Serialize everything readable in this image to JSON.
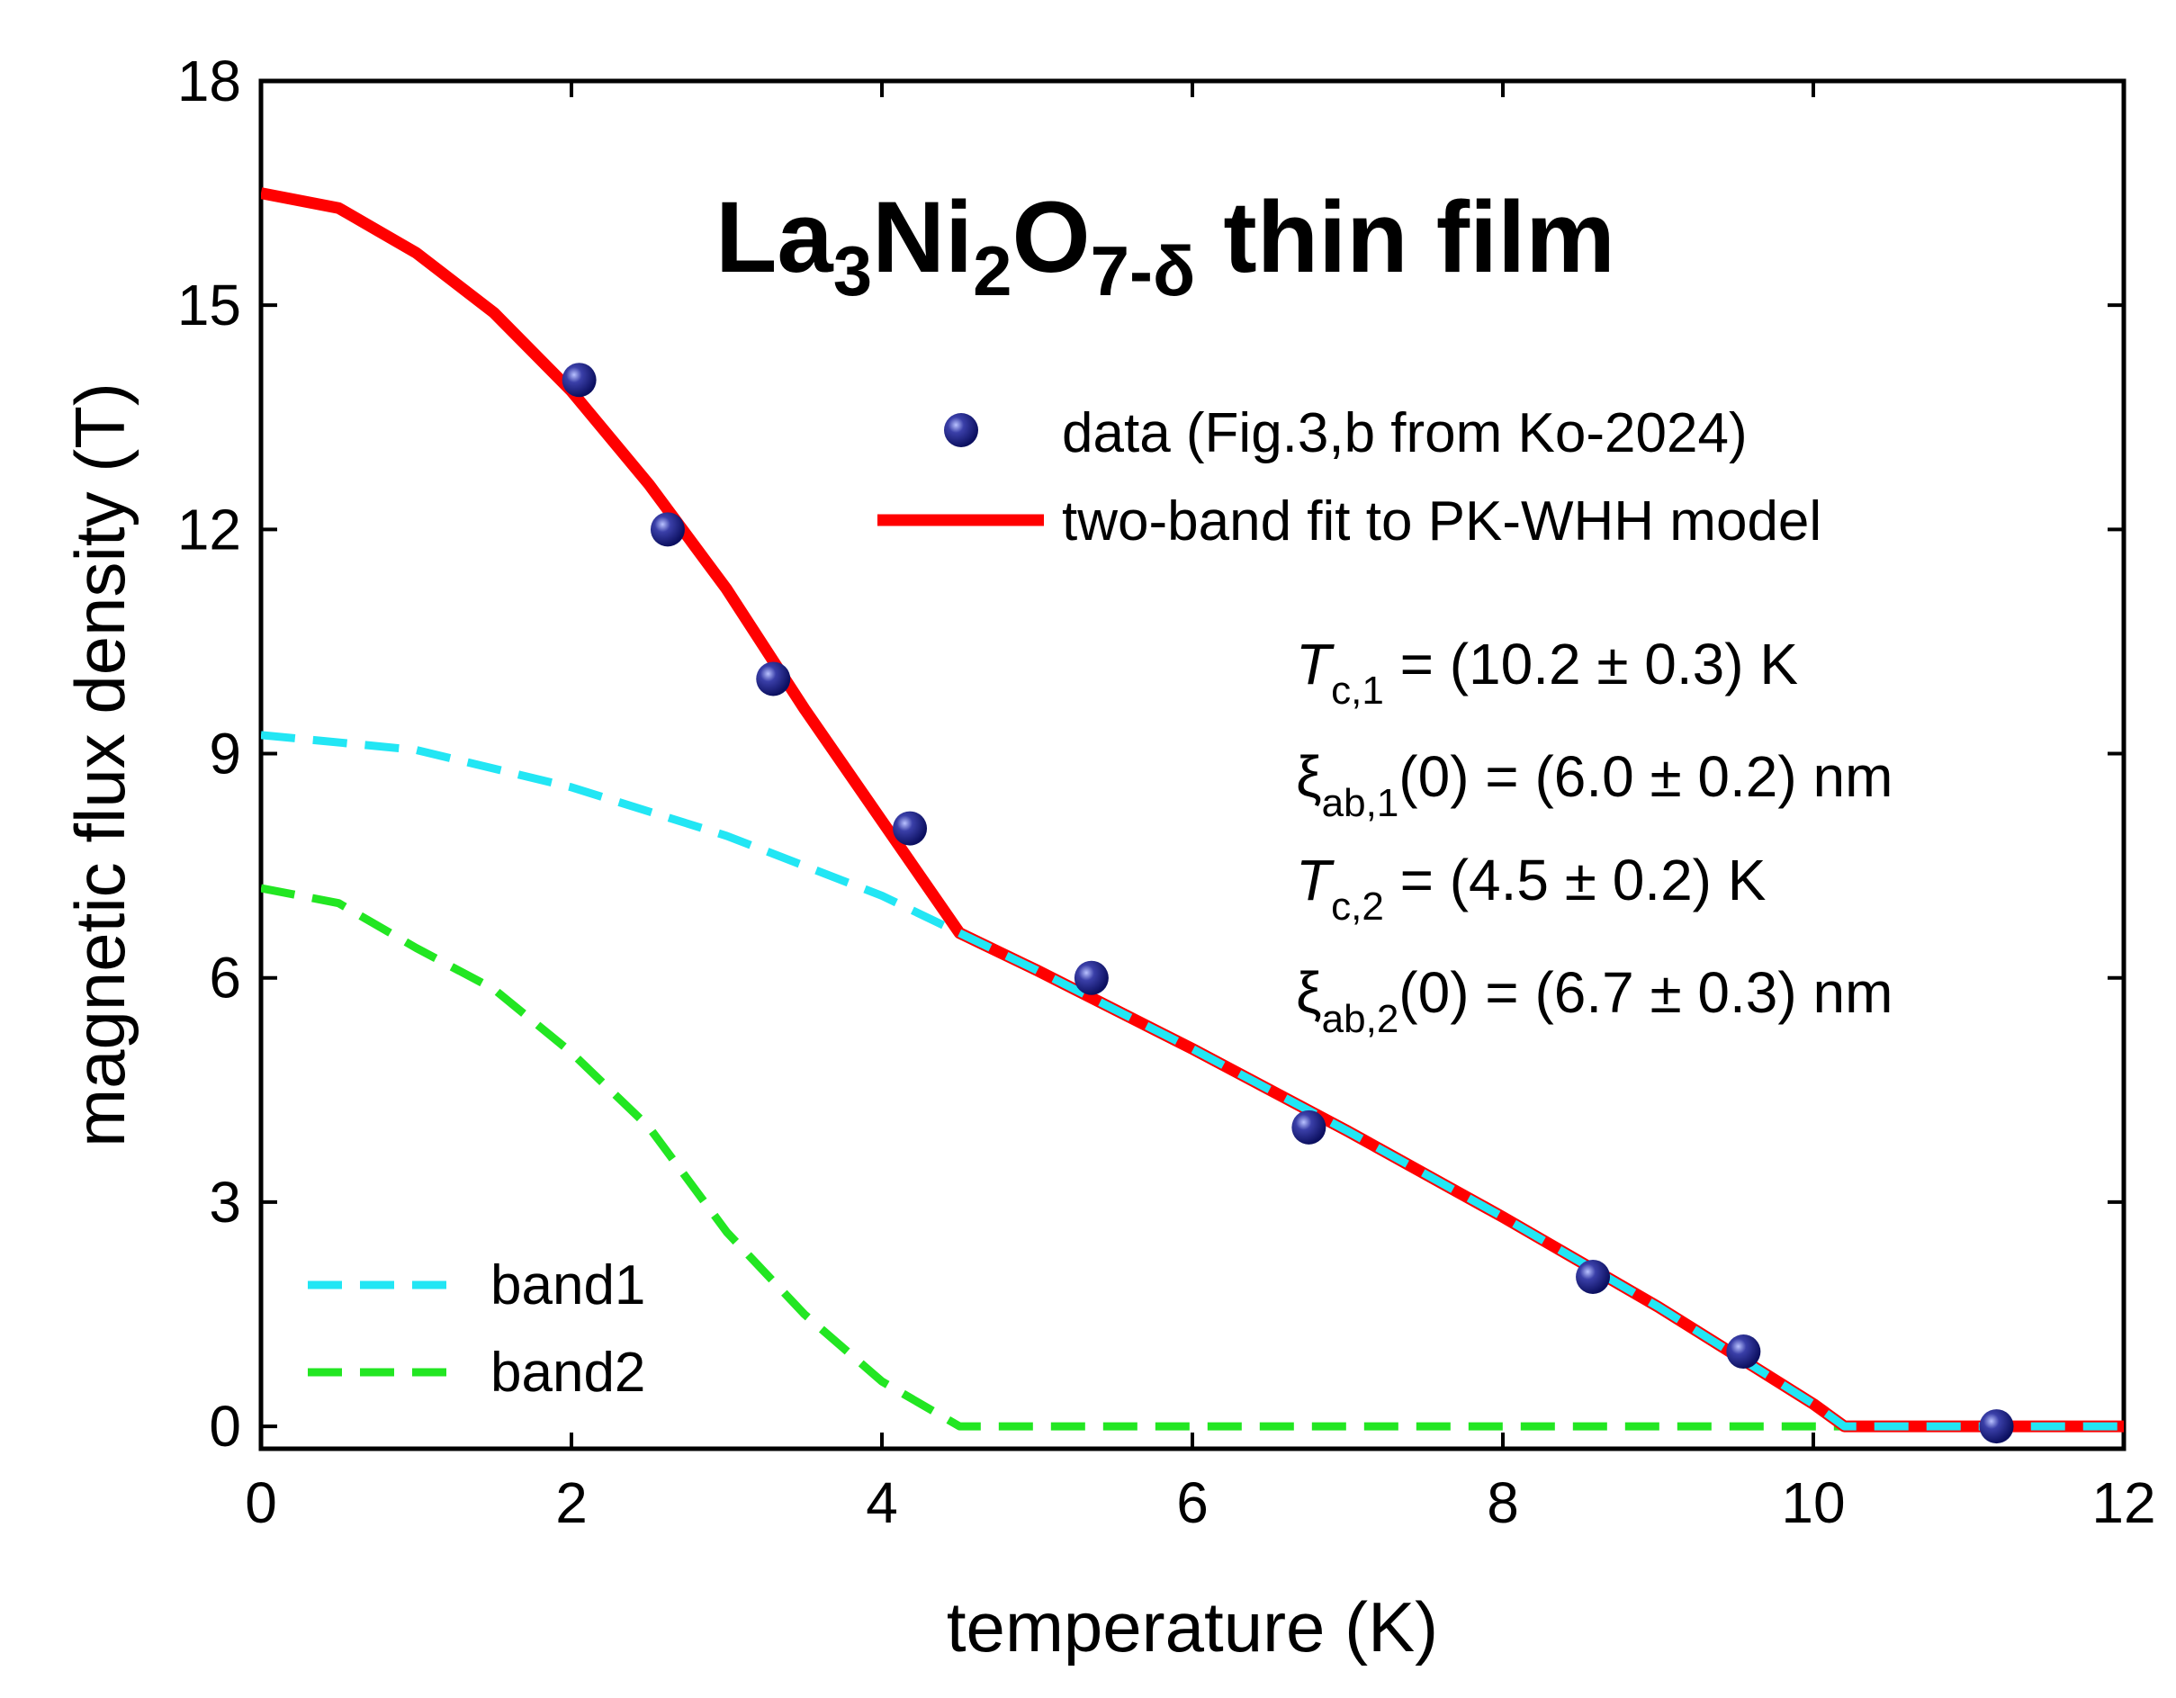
{
  "chart_data": {
    "type": "scatter",
    "title": {
      "prefix": "La",
      "sub1": "3",
      "mid1": "Ni",
      "sub2": "2",
      "mid2": "O",
      "sub3": "7-δ",
      "suffix": " thin film"
    },
    "xlabel": "temperature (K)",
    "ylabel": "magnetic flux density (T)",
    "xlim": [
      0,
      12
    ],
    "ylim": [
      -0.3,
      18
    ],
    "xticks": [
      0,
      2,
      4,
      6,
      8,
      10,
      12
    ],
    "yticks": [
      0,
      3,
      6,
      9,
      12,
      15,
      18
    ],
    "grid": false,
    "series": [
      {
        "name": "data (Fig.3,b from Ko-2024)",
        "kind": "scatter",
        "color": "#1a1f7a",
        "x": [
          2.05,
          2.62,
          3.3,
          4.18,
          5.35,
          6.75,
          8.58,
          9.55,
          11.18
        ],
        "y": [
          14.0,
          12.0,
          10.0,
          8.0,
          6.0,
          4.0,
          2.0,
          1.0,
          0.0
        ]
      },
      {
        "name": "two-band fit to PK-WHH model",
        "kind": "line",
        "color": "#ff0000",
        "x": [
          0,
          0.5,
          1.0,
          1.5,
          2.0,
          2.5,
          3.0,
          3.5,
          4.0,
          4.5,
          5.0,
          6.0,
          7.0,
          8.0,
          9.0,
          10.0,
          10.2,
          12.0
        ],
        "y": [
          16.5,
          16.3,
          15.7,
          14.9,
          13.85,
          12.6,
          11.2,
          9.6,
          8.1,
          6.6,
          6.1,
          5.05,
          3.95,
          2.8,
          1.6,
          0.3,
          0.0,
          0.0
        ]
      },
      {
        "name": "band1",
        "kind": "dashed",
        "color": "#22e6f4",
        "x": [
          0,
          1.0,
          2.0,
          3.0,
          4.0,
          4.5,
          5.0,
          6.0,
          7.0,
          8.0,
          9.0,
          10.0,
          10.2,
          12.0
        ],
        "y": [
          9.25,
          9.05,
          8.55,
          7.9,
          7.1,
          6.6,
          6.1,
          5.05,
          3.95,
          2.8,
          1.6,
          0.3,
          0.0,
          0.0
        ]
      },
      {
        "name": "band2",
        "kind": "dashed",
        "color": "#22e622",
        "x": [
          0,
          0.5,
          1.0,
          1.5,
          2.0,
          2.5,
          3.0,
          3.5,
          4.0,
          4.5,
          12.0
        ],
        "y": [
          7.2,
          7.0,
          6.4,
          5.85,
          5.0,
          4.0,
          2.6,
          1.5,
          0.6,
          0.0,
          0.0
        ]
      }
    ],
    "legend": {
      "data_label": "data (Fig.3,b from Ko-2024)",
      "fit_label": "two-band fit to PK-WHH model",
      "band1_label": "band1",
      "band2_label": "band2"
    },
    "annotations": {
      "tc1": {
        "sym": "T",
        "sub": "c,1",
        "rest": " = (10.2 ± 0.3) K"
      },
      "xi1": {
        "sym": "ξ",
        "sub": "ab,1",
        "rest": "(0) = (6.0 ± 0.2) nm"
      },
      "tc2": {
        "sym": "T",
        "sub": "c,2",
        "rest": " = (4.5 ± 0.2) K"
      },
      "xi2": {
        "sym": "ξ",
        "sub": "ab,2",
        "rest": "(0) = (6.7 ± 0.3) nm"
      }
    }
  }
}
